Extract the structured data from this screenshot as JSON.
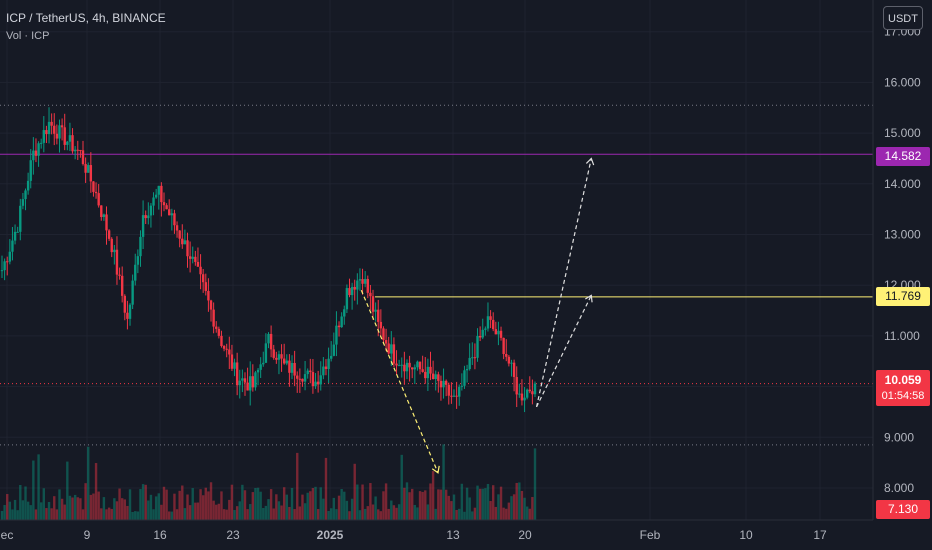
{
  "header": {
    "symbol_title": "ICP / TetherUS, 4h, BINANCE",
    "volume_label": "Vol · ICP"
  },
  "currency_button": "USDT",
  "price_tags": {
    "resistance_high": {
      "value": "14.582",
      "color": "#9c27b0"
    },
    "resistance_mid": {
      "value": "11.769",
      "color": "#fff176"
    },
    "last_price": {
      "value": "10.059",
      "countdown": "01:54:58",
      "color": "#f23645"
    },
    "low_tag": {
      "value": "7.130",
      "color": "#f23645"
    }
  },
  "chart_data": {
    "type": "candlestick",
    "title": "ICP / TetherUS, 4h, BINANCE",
    "x_tick_labels": [
      "ec",
      "9",
      "16",
      "23",
      "2025",
      "13",
      "20",
      "Feb",
      "10",
      "17"
    ],
    "y_tick_labels": [
      "17.000",
      "16.000",
      "15.000",
      "14.000",
      "13.000",
      "12.000",
      "11.000",
      "10.000",
      "9.000",
      "8.000"
    ],
    "ylim": [
      6.8,
      17.1
    ],
    "series": [
      {
        "name": "ICP",
        "approx_closes": [
          12.3,
          13.2,
          14.6,
          15.2,
          14.9,
          14.6,
          13.8,
          12.8,
          11.3,
          13.4,
          13.8,
          13.2,
          12.6,
          11.8,
          10.9,
          10.2,
          10.0,
          10.9,
          10.4,
          10.3,
          10.1,
          10.7,
          11.9,
          12.2,
          11.2,
          10.6,
          10.4,
          10.3,
          10.0,
          9.7,
          10.6,
          11.3,
          10.8,
          9.8,
          10.06
        ]
      }
    ],
    "horizontal_levels": [
      {
        "value": 15.55,
        "style": "dotted"
      },
      {
        "value": 14.582,
        "style": "solid",
        "color": "#9c27b0"
      },
      {
        "value": 11.769,
        "style": "solid",
        "color": "#fff176"
      },
      {
        "value": 10.059,
        "style": "dotted",
        "color": "#f23645"
      },
      {
        "value": 8.85,
        "style": "dotted"
      }
    ],
    "projections": [
      {
        "color": "#fff176",
        "from": [
          "2025-01-04",
          11.9
        ],
        "to": [
          "2025-01-11",
          8.3
        ]
      },
      {
        "color": "#e0e0e0",
        "from": [
          "2025-01-20",
          9.6
        ],
        "to": [
          "2025-01-25",
          14.5
        ]
      },
      {
        "color": "#e0e0e0",
        "from": [
          "2025-01-20",
          9.6
        ],
        "to": [
          "2025-01-25",
          11.8
        ]
      }
    ],
    "grid": true
  }
}
